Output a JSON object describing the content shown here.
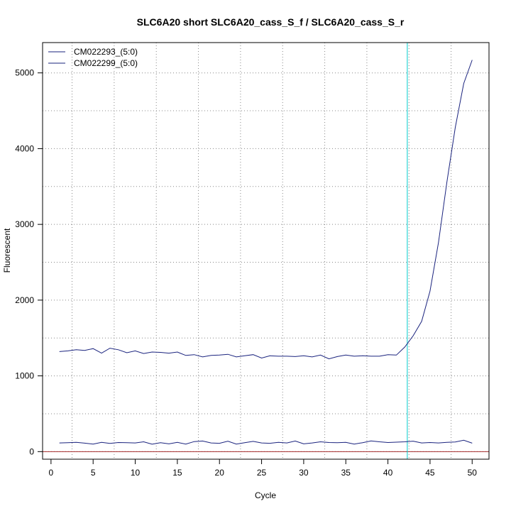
{
  "chart_data": {
    "type": "line",
    "title": "SLC6A20 short SLC6A20_cass_S_f / SLC6A20_cass_S_r",
    "xlabel": "Cycle",
    "ylabel": "Fluorescent",
    "xlim": [
      -1,
      52
    ],
    "ylim": [
      -100,
      5400
    ],
    "x_ticks": [
      0,
      5,
      10,
      15,
      20,
      25,
      30,
      35,
      40,
      45,
      50
    ],
    "y_ticks": [
      0,
      1000,
      2000,
      3000,
      4000,
      5000
    ],
    "vertical_gridlines": [
      2.5,
      7.5,
      12.5,
      17.5,
      22.5,
      27.5,
      32.5,
      37.5,
      42.5,
      47.5
    ],
    "horizontal_gridlines": [
      0,
      500,
      1000,
      1500,
      2000,
      2500,
      3000,
      3500,
      4000,
      4500,
      5000
    ],
    "baseline": 0,
    "threshold_cycle": 42.3,
    "legend_position": "top-left",
    "colors": {
      "series": "#1a237e",
      "threshold": "#00cccc",
      "baseline": "#a52a2a",
      "grid": "#888888"
    },
    "legend": [
      "CM022293_(5:0)",
      "CM022299_(5:0)"
    ],
    "series": [
      {
        "name": "CM022293_(5:0)",
        "x": [
          1,
          2,
          3,
          4,
          5,
          6,
          7,
          8,
          9,
          10,
          11,
          12,
          13,
          14,
          15,
          16,
          17,
          18,
          19,
          20,
          21,
          22,
          23,
          24,
          25,
          26,
          27,
          28,
          29,
          30,
          31,
          32,
          33,
          34,
          35,
          36,
          37,
          38,
          39,
          40,
          41,
          42,
          43,
          44,
          45,
          46,
          47,
          48,
          49,
          50
        ],
        "values": [
          1320,
          1330,
          1345,
          1335,
          1360,
          1300,
          1365,
          1345,
          1305,
          1330,
          1295,
          1315,
          1310,
          1300,
          1315,
          1270,
          1280,
          1250,
          1270,
          1275,
          1285,
          1250,
          1265,
          1280,
          1235,
          1265,
          1260,
          1260,
          1255,
          1265,
          1250,
          1275,
          1225,
          1255,
          1275,
          1260,
          1265,
          1260,
          1260,
          1280,
          1275,
          1380,
          1530,
          1720,
          2120,
          2760,
          3560,
          4280,
          4860,
          5170
        ]
      },
      {
        "name": "CM022299_(5:0)",
        "x": [
          1,
          2,
          3,
          4,
          5,
          6,
          7,
          8,
          9,
          10,
          11,
          12,
          13,
          14,
          15,
          16,
          17,
          18,
          19,
          20,
          21,
          22,
          23,
          24,
          25,
          26,
          27,
          28,
          29,
          30,
          31,
          32,
          33,
          34,
          35,
          36,
          37,
          38,
          39,
          40,
          41,
          42,
          43,
          44,
          45,
          46,
          47,
          48,
          49,
          50
        ],
        "values": [
          115,
          118,
          122,
          112,
          100,
          122,
          108,
          120,
          118,
          115,
          130,
          98,
          118,
          102,
          122,
          100,
          132,
          140,
          115,
          110,
          138,
          100,
          118,
          135,
          115,
          110,
          122,
          115,
          140,
          102,
          115,
          130,
          120,
          118,
          122,
          100,
          118,
          142,
          130,
          120,
          125,
          130,
          138,
          115,
          120,
          115,
          122,
          128,
          150,
          112
        ]
      }
    ]
  }
}
